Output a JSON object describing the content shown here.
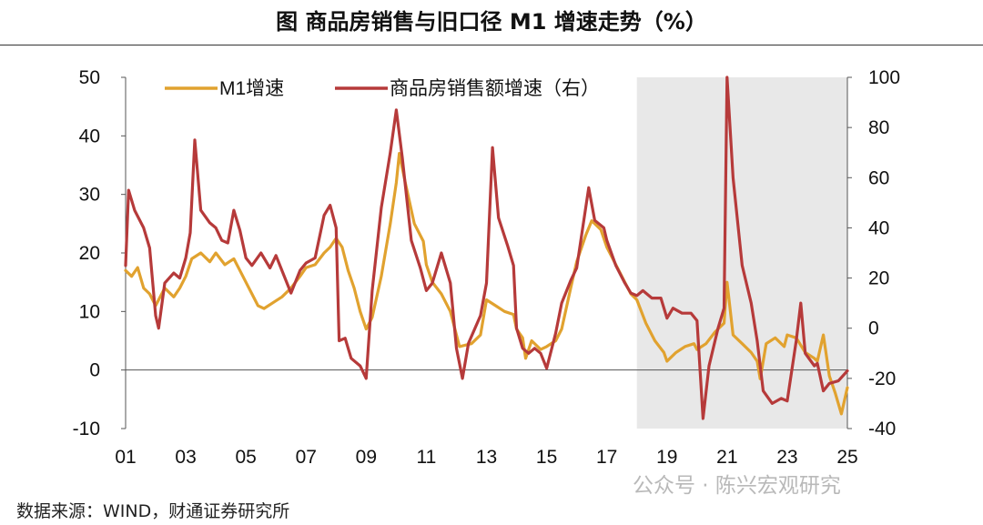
{
  "header": {
    "title": "图  商品房销售与旧口径 M1 增速走势（%）"
  },
  "footer": {
    "source": "数据来源：WIND，财通证券研究所",
    "watermark": "公众号 · 陈兴宏观研究"
  },
  "colors": {
    "m1": "#E1A22F",
    "sales": "#B63A3A",
    "shade": "#E8E8E8",
    "axis": "#555555"
  },
  "chart_data": {
    "type": "line",
    "title": "商品房销售与旧口径 M1 增速走势（%）",
    "x_range": [
      2001,
      2025
    ],
    "x_ticks": [
      "01",
      "03",
      "05",
      "07",
      "09",
      "11",
      "13",
      "15",
      "17",
      "19",
      "21",
      "23",
      "25"
    ],
    "left_axis": {
      "range": [
        -10,
        50
      ],
      "ticks": [
        "-10",
        "0",
        "10",
        "20",
        "30",
        "40",
        "50"
      ]
    },
    "right_axis": {
      "range": [
        -40,
        100
      ],
      "ticks": [
        "-40",
        "-20",
        "0",
        "20",
        "40",
        "60",
        "80",
        "100"
      ]
    },
    "shaded_period": [
      2018.0,
      2025.0
    ],
    "legend": [
      {
        "name": "M1增速",
        "color": "#E1A22F"
      },
      {
        "name": "商品房销售额增速（右）",
        "color": "#B63A3A"
      }
    ],
    "series": [
      {
        "name": "M1增速",
        "axis": "left",
        "points": [
          [
            2001.0,
            17
          ],
          [
            2001.2,
            16
          ],
          [
            2001.4,
            17.5
          ],
          [
            2001.6,
            14
          ],
          [
            2001.8,
            13
          ],
          [
            2002.0,
            11
          ],
          [
            2002.3,
            14
          ],
          [
            2002.6,
            12.5
          ],
          [
            2002.8,
            14
          ],
          [
            2003.0,
            16
          ],
          [
            2003.2,
            19
          ],
          [
            2003.5,
            20
          ],
          [
            2003.8,
            18.5
          ],
          [
            2004.0,
            20
          ],
          [
            2004.3,
            18
          ],
          [
            2004.6,
            19
          ],
          [
            2004.8,
            17
          ],
          [
            2005.0,
            15
          ],
          [
            2005.2,
            13
          ],
          [
            2005.4,
            11
          ],
          [
            2005.6,
            10.5
          ],
          [
            2005.9,
            11.5
          ],
          [
            2006.2,
            12.5
          ],
          [
            2006.5,
            14
          ],
          [
            2006.8,
            16
          ],
          [
            2007.0,
            17.5
          ],
          [
            2007.3,
            18
          ],
          [
            2007.6,
            20
          ],
          [
            2007.8,
            21
          ],
          [
            2008.0,
            22.5
          ],
          [
            2008.2,
            21
          ],
          [
            2008.4,
            17
          ],
          [
            2008.6,
            14
          ],
          [
            2008.8,
            10
          ],
          [
            2009.0,
            7
          ],
          [
            2009.2,
            9
          ],
          [
            2009.5,
            16
          ],
          [
            2009.8,
            25
          ],
          [
            2010.0,
            32
          ],
          [
            2010.1,
            37
          ],
          [
            2010.3,
            32
          ],
          [
            2010.6,
            25
          ],
          [
            2010.9,
            22
          ],
          [
            2011.0,
            18
          ],
          [
            2011.2,
            15
          ],
          [
            2011.5,
            13
          ],
          [
            2011.8,
            10
          ],
          [
            2012.0,
            6
          ],
          [
            2012.1,
            4
          ],
          [
            2012.5,
            4.5
          ],
          [
            2012.8,
            6
          ],
          [
            2013.0,
            12
          ],
          [
            2013.3,
            11
          ],
          [
            2013.6,
            10
          ],
          [
            2013.9,
            9.5
          ],
          [
            2014.0,
            7
          ],
          [
            2014.2,
            5.5
          ],
          [
            2014.3,
            2
          ],
          [
            2014.5,
            5
          ],
          [
            2014.8,
            3.5
          ],
          [
            2015.0,
            4
          ],
          [
            2015.3,
            5
          ],
          [
            2015.5,
            7
          ],
          [
            2015.8,
            14
          ],
          [
            2016.0,
            18.5
          ],
          [
            2016.3,
            23
          ],
          [
            2016.5,
            25.5
          ],
          [
            2016.8,
            24
          ],
          [
            2017.0,
            21
          ],
          [
            2017.3,
            18
          ],
          [
            2017.6,
            15
          ],
          [
            2017.8,
            13
          ],
          [
            2018.0,
            12
          ],
          [
            2018.3,
            8
          ],
          [
            2018.6,
            5
          ],
          [
            2018.9,
            3
          ],
          [
            2019.0,
            1.5
          ],
          [
            2019.3,
            3
          ],
          [
            2019.6,
            4
          ],
          [
            2019.9,
            4.5
          ],
          [
            2020.0,
            3.5
          ],
          [
            2020.3,
            4.5
          ],
          [
            2020.6,
            6.5
          ],
          [
            2020.9,
            8
          ],
          [
            2021.0,
            15
          ],
          [
            2021.2,
            6
          ],
          [
            2021.5,
            4.5
          ],
          [
            2021.8,
            3
          ],
          [
            2022.0,
            1.5
          ],
          [
            2022.1,
            -1.5
          ],
          [
            2022.3,
            4.5
          ],
          [
            2022.6,
            5.5
          ],
          [
            2022.9,
            4
          ],
          [
            2023.0,
            6
          ],
          [
            2023.3,
            5.5
          ],
          [
            2023.6,
            3
          ],
          [
            2023.9,
            2
          ],
          [
            2024.0,
            1.5
          ],
          [
            2024.2,
            6
          ],
          [
            2024.4,
            -1
          ],
          [
            2024.6,
            -4
          ],
          [
            2024.8,
            -7.5
          ],
          [
            2025.0,
            -3
          ]
        ]
      },
      {
        "name": "商品房销售额增速（右）",
        "axis": "right",
        "points": [
          [
            2001.0,
            25
          ],
          [
            2001.1,
            55
          ],
          [
            2001.3,
            47
          ],
          [
            2001.6,
            40
          ],
          [
            2001.8,
            32
          ],
          [
            2002.0,
            5
          ],
          [
            2002.1,
            0
          ],
          [
            2002.3,
            18
          ],
          [
            2002.6,
            22
          ],
          [
            2002.8,
            20
          ],
          [
            2003.0,
            28
          ],
          [
            2003.15,
            38
          ],
          [
            2003.3,
            75
          ],
          [
            2003.5,
            47
          ],
          [
            2003.8,
            42
          ],
          [
            2004.0,
            40
          ],
          [
            2004.2,
            35
          ],
          [
            2004.4,
            34
          ],
          [
            2004.6,
            47
          ],
          [
            2004.8,
            39
          ],
          [
            2005.0,
            28
          ],
          [
            2005.2,
            25
          ],
          [
            2005.5,
            30
          ],
          [
            2005.8,
            24
          ],
          [
            2006.0,
            29
          ],
          [
            2006.3,
            20
          ],
          [
            2006.5,
            14
          ],
          [
            2006.8,
            23
          ],
          [
            2007.0,
            26
          ],
          [
            2007.3,
            28
          ],
          [
            2007.6,
            45
          ],
          [
            2007.8,
            49
          ],
          [
            2008.0,
            40
          ],
          [
            2008.1,
            -5
          ],
          [
            2008.3,
            -4
          ],
          [
            2008.5,
            -12
          ],
          [
            2008.8,
            -15
          ],
          [
            2009.0,
            -20
          ],
          [
            2009.2,
            15
          ],
          [
            2009.5,
            48
          ],
          [
            2009.8,
            70
          ],
          [
            2010.0,
            87
          ],
          [
            2010.2,
            68
          ],
          [
            2010.5,
            35
          ],
          [
            2010.8,
            24
          ],
          [
            2011.0,
            15
          ],
          [
            2011.2,
            18
          ],
          [
            2011.5,
            30
          ],
          [
            2011.8,
            18
          ],
          [
            2012.0,
            -8
          ],
          [
            2012.2,
            -20
          ],
          [
            2012.4,
            -6
          ],
          [
            2012.8,
            5
          ],
          [
            2013.0,
            18
          ],
          [
            2013.2,
            72
          ],
          [
            2013.4,
            44
          ],
          [
            2013.7,
            33
          ],
          [
            2013.9,
            25
          ],
          [
            2014.0,
            0
          ],
          [
            2014.2,
            -8
          ],
          [
            2014.4,
            -10
          ],
          [
            2014.6,
            -8
          ],
          [
            2014.8,
            -10
          ],
          [
            2015.0,
            -16
          ],
          [
            2015.3,
            -2
          ],
          [
            2015.5,
            10
          ],
          [
            2015.8,
            19
          ],
          [
            2016.0,
            24
          ],
          [
            2016.2,
            40
          ],
          [
            2016.4,
            56
          ],
          [
            2016.6,
            43
          ],
          [
            2016.9,
            40
          ],
          [
            2017.0,
            35
          ],
          [
            2017.3,
            25
          ],
          [
            2017.6,
            18
          ],
          [
            2017.8,
            14
          ],
          [
            2018.0,
            13
          ],
          [
            2018.2,
            15
          ],
          [
            2018.5,
            12
          ],
          [
            2018.8,
            12
          ],
          [
            2019.0,
            4
          ],
          [
            2019.2,
            8
          ],
          [
            2019.5,
            6
          ],
          [
            2019.8,
            6
          ],
          [
            2020.0,
            3
          ],
          [
            2020.2,
            -36
          ],
          [
            2020.4,
            -15
          ],
          [
            2020.7,
            0
          ],
          [
            2020.9,
            8
          ],
          [
            2021.0,
            100
          ],
          [
            2021.2,
            60
          ],
          [
            2021.5,
            25
          ],
          [
            2021.8,
            10
          ],
          [
            2022.0,
            -5
          ],
          [
            2022.2,
            -25
          ],
          [
            2022.5,
            -30
          ],
          [
            2022.8,
            -28
          ],
          [
            2023.0,
            -29
          ],
          [
            2023.3,
            -5
          ],
          [
            2023.45,
            10
          ],
          [
            2023.6,
            -10
          ],
          [
            2023.9,
            -15
          ],
          [
            2024.0,
            -14
          ],
          [
            2024.2,
            -25
          ],
          [
            2024.4,
            -22
          ],
          [
            2024.7,
            -21
          ],
          [
            2025.0,
            -17
          ]
        ]
      }
    ]
  }
}
